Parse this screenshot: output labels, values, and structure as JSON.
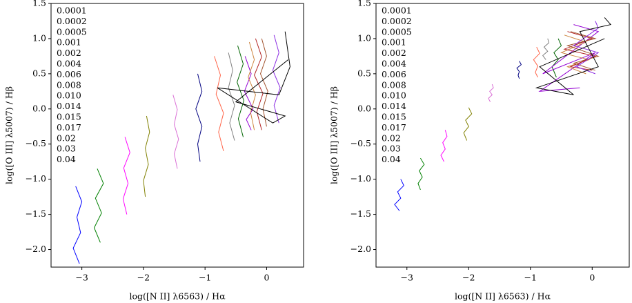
{
  "chart_data": [
    {
      "type": "line",
      "xlabel": "log([N II] λ6563) / Hα",
      "ylabel": "log([O III] λ5007) / Hβ",
      "xlim": [
        -3.5,
        0.6
      ],
      "ylim": [
        -2.25,
        1.5
      ],
      "xticks": [
        {
          "value": -3,
          "label": "−3"
        },
        {
          "value": -2,
          "label": "−2"
        },
        {
          "value": -1,
          "label": "−1"
        },
        0
      ],
      "yticks": [
        {
          "value": -2,
          "label": "−2.0"
        },
        {
          "value": -1.5,
          "label": "−1.5"
        },
        {
          "value": -1,
          "label": "−1.0"
        },
        {
          "value": -0.5,
          "label": "−0.5"
        },
        {
          "value": 0,
          "label": "0.0"
        },
        {
          "value": 0.5,
          "label": "0.5"
        },
        {
          "value": 1,
          "label": "1.0"
        },
        {
          "value": 1.5,
          "label": "1.5"
        }
      ],
      "series": [
        {
          "name": "0.0001",
          "color": "#0000ff",
          "x": [
            -3.1,
            -3.0,
            -3.08,
            -3.02,
            -3.14,
            -3.04
          ],
          "values": [
            -1.1,
            -1.32,
            -1.54,
            -1.76,
            -1.98,
            -2.2
          ]
        },
        {
          "name": "0.0002",
          "color": "#008000",
          "x": [
            -2.75,
            -2.65,
            -2.78,
            -2.68,
            -2.8,
            -2.7
          ],
          "values": [
            -0.85,
            -1.06,
            -1.27,
            -1.48,
            -1.69,
            -1.9
          ]
        },
        {
          "name": "0.0005",
          "color": "#ff00ff",
          "x": [
            -2.3,
            -2.22,
            -2.32,
            -2.25,
            -2.33,
            -2.27
          ],
          "values": [
            -0.4,
            -0.62,
            -0.84,
            -1.06,
            -1.28,
            -1.5
          ]
        },
        {
          "name": "0.001",
          "color": "#808000",
          "x": [
            -1.95,
            -1.9,
            -1.97,
            -1.92,
            -2.0,
            -1.97
          ],
          "values": [
            -0.1,
            -0.33,
            -0.56,
            -0.79,
            -1.02,
            -1.25
          ]
        },
        {
          "name": "0.002",
          "color": "#da70d6",
          "x": [
            -1.52,
            -1.45,
            -1.5,
            -1.43,
            -1.5,
            -1.45
          ],
          "values": [
            0.2,
            -0.01,
            -0.22,
            -0.43,
            -0.64,
            -0.85
          ]
        },
        {
          "name": "0.004",
          "color": "#000080",
          "x": [
            -1.12,
            -1.05,
            -1.15,
            -1.05,
            -1.12,
            -1.08
          ],
          "values": [
            0.5,
            0.25,
            0.0,
            -0.25,
            -0.5,
            -0.75
          ]
        },
        {
          "name": "0.006",
          "color": "#ff6347",
          "x": [
            -0.85,
            -0.75,
            -0.82,
            -0.7,
            -0.78,
            -0.7
          ],
          "values": [
            0.75,
            0.48,
            0.21,
            -0.06,
            -0.33,
            -0.6
          ]
        },
        {
          "name": "0.008",
          "color": "#808080",
          "x": [
            -0.62,
            -0.55,
            -0.62,
            -0.52,
            -0.6,
            -0.52
          ],
          "values": [
            0.8,
            0.55,
            0.3,
            0.05,
            -0.2,
            -0.45
          ]
        },
        {
          "name": "0.010",
          "color": "#006400",
          "x": [
            -0.47,
            -0.38,
            -0.48,
            -0.37,
            -0.46,
            -0.38
          ],
          "values": [
            0.9,
            0.64,
            0.38,
            0.12,
            -0.14,
            -0.4
          ]
        },
        {
          "name": "0.014",
          "color": "#9400d3",
          "x": [
            -0.35,
            -0.25,
            -0.36,
            -0.22,
            -0.33,
            -0.25
          ],
          "values": [
            0.75,
            0.5,
            0.25,
            0.0,
            -0.15,
            -0.3
          ]
        },
        {
          "name": "0.015",
          "color": "#cd853f",
          "x": [
            -0.28,
            -0.2,
            -0.3,
            -0.18,
            -0.26,
            -0.2
          ],
          "values": [
            0.95,
            0.7,
            0.45,
            0.2,
            -0.05,
            -0.3
          ]
        },
        {
          "name": "0.017",
          "color": "#b22222",
          "x": [
            -0.18,
            -0.08,
            -0.2,
            -0.06,
            -0.16,
            -0.08
          ],
          "values": [
            1.0,
            0.74,
            0.48,
            0.22,
            -0.04,
            -0.3
          ]
        },
        {
          "name": "0.02",
          "color": "#a0522d",
          "x": [
            -0.08,
            0.0,
            -0.1,
            0.02,
            -0.06,
            0.0
          ],
          "values": [
            1.0,
            0.75,
            0.5,
            0.25,
            0.0,
            -0.25
          ]
        },
        {
          "name": "0.03",
          "color": "#8a2be2",
          "x": [
            0.12,
            0.2,
            0.1,
            0.22,
            0.12,
            0.2
          ],
          "values": [
            1.05,
            0.8,
            0.55,
            0.3,
            0.05,
            -0.2
          ]
        },
        {
          "name": "0.04",
          "color": "#000000",
          "x": [
            0.3,
            0.38,
            0.2,
            -0.8,
            0.1,
            0.3,
            -0.5,
            0.35
          ],
          "values": [
            1.1,
            0.6,
            0.2,
            0.3,
            -0.2,
            -0.1,
            0.1,
            0.7
          ]
        }
      ]
    },
    {
      "type": "line",
      "xlabel": "log([N II] λ6563) / Hα",
      "ylabel": "log([O III] λ5007) / Hβ",
      "xlim": [
        -3.5,
        0.6
      ],
      "ylim": [
        -2.25,
        1.5
      ],
      "xticks": [
        {
          "value": -3,
          "label": "−3"
        },
        {
          "value": -2,
          "label": "−2"
        },
        {
          "value": -1,
          "label": "−1"
        },
        0
      ],
      "yticks": [
        {
          "value": -2,
          "label": "−2.0"
        },
        {
          "value": -1.5,
          "label": "−1.5"
        },
        {
          "value": -1,
          "label": "−1.0"
        },
        {
          "value": -0.5,
          "label": "−0.5"
        },
        {
          "value": 0,
          "label": "0.0"
        },
        {
          "value": 0.5,
          "label": "0.5"
        },
        {
          "value": 1,
          "label": "1.0"
        },
        {
          "value": 1.5,
          "label": "1.5"
        }
      ],
      "series": [
        {
          "name": "0.0001",
          "color": "#0000ff",
          "x": [
            -3.1,
            -3.05,
            -3.15,
            -3.1,
            -3.2,
            -3.12
          ],
          "values": [
            -1.0,
            -1.09,
            -1.18,
            -1.27,
            -1.36,
            -1.45
          ]
        },
        {
          "name": "0.0002",
          "color": "#008000",
          "x": [
            -2.78,
            -2.72,
            -2.8,
            -2.75,
            -2.82,
            -2.78
          ],
          "values": [
            -0.7,
            -0.79,
            -0.88,
            -0.97,
            -1.06,
            -1.15
          ]
        },
        {
          "name": "0.0005",
          "color": "#ff00ff",
          "x": [
            -2.38,
            -2.35,
            -2.42,
            -2.38,
            -2.45,
            -2.4
          ],
          "values": [
            -0.3,
            -0.39,
            -0.48,
            -0.57,
            -0.66,
            -0.75
          ]
        },
        {
          "name": "0.001",
          "color": "#808000",
          "x": [
            -2.0,
            -1.95,
            -2.05,
            -2.0,
            -2.08,
            -2.03
          ],
          "values": [
            0.02,
            -0.07,
            -0.16,
            -0.25,
            -0.34,
            -0.45
          ]
        },
        {
          "name": "0.002",
          "color": "#da70d6",
          "x": [
            -1.62,
            -1.6,
            -1.66,
            -1.62,
            -1.68,
            -1.65
          ],
          "values": [
            0.35,
            0.3,
            0.25,
            0.2,
            0.15,
            0.1
          ]
        },
        {
          "name": "0.004",
          "color": "#000080",
          "x": [
            -1.18,
            -1.15,
            -1.22,
            -1.18,
            -1.2,
            -1.18
          ],
          "values": [
            0.68,
            0.63,
            0.58,
            0.53,
            0.48,
            0.43
          ]
        },
        {
          "name": "0.006",
          "color": "#ff6347",
          "x": [
            -0.9,
            -0.85,
            -0.95,
            -0.88,
            -0.92,
            -0.88
          ],
          "values": [
            0.88,
            0.79,
            0.7,
            0.61,
            0.52,
            0.45
          ]
        },
        {
          "name": "0.008",
          "color": "#808080",
          "x": [
            -0.72,
            -0.7,
            -0.78,
            -0.72,
            -0.8,
            -0.75
          ],
          "values": [
            1.0,
            0.94,
            0.88,
            0.82,
            0.76,
            0.7
          ]
        },
        {
          "name": "0.010",
          "color": "#006400",
          "x": [
            -0.55,
            -0.5,
            -0.62,
            -0.55,
            -0.65,
            -0.58
          ],
          "values": [
            1.0,
            0.9,
            0.8,
            0.7,
            0.6,
            0.45
          ]
        },
        {
          "name": "0.014",
          "color": "#9400d3",
          "x": [
            -0.3,
            0.1,
            -0.8,
            0.05,
            -0.85,
            -0.2
          ],
          "values": [
            1.2,
            1.1,
            0.5,
            0.8,
            0.25,
            0.3
          ]
        },
        {
          "name": "0.015",
          "color": "#cd853f",
          "x": [
            -0.45,
            -0.1,
            -0.5,
            -0.05,
            -0.4,
            -0.1
          ],
          "values": [
            1.05,
            0.95,
            0.8,
            0.7,
            0.6,
            0.5
          ]
        },
        {
          "name": "0.017",
          "color": "#b22222",
          "x": [
            -0.4,
            0.0,
            -0.45,
            0.05,
            -0.35,
            0.0
          ],
          "values": [
            1.1,
            1.0,
            0.85,
            0.75,
            0.6,
            0.55
          ]
        },
        {
          "name": "0.02",
          "color": "#a0522d",
          "x": [
            -0.35,
            0.05,
            -0.4,
            0.1,
            -0.3,
            0.05
          ],
          "values": [
            1.1,
            1.0,
            0.9,
            0.75,
            0.65,
            0.55
          ]
        },
        {
          "name": "0.03",
          "color": "#8a2be2",
          "x": [
            0.05,
            0.1,
            -0.3,
            0.1,
            -0.25,
            0.05
          ],
          "values": [
            1.25,
            1.15,
            0.9,
            0.8,
            0.6,
            0.5
          ]
        },
        {
          "name": "0.04",
          "color": "#000000",
          "x": [
            0.2,
            0.3,
            -0.2,
            0.1,
            -0.9,
            -0.3,
            -0.85,
            0.2
          ],
          "values": [
            1.3,
            1.2,
            1.1,
            0.6,
            0.3,
            0.2,
            0.6,
            1.0
          ]
        }
      ]
    }
  ]
}
